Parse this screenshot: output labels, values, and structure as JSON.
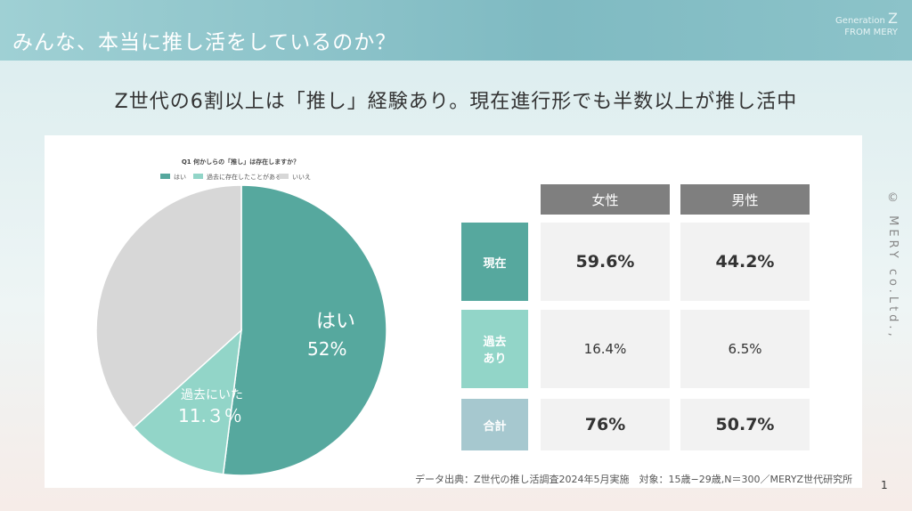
{
  "header": {
    "title": "みんな、本当に推し活をしているのか？",
    "brand_line1": "Generation",
    "brand_z": "Z",
    "brand_line2": "FROM MERY"
  },
  "subtitle": "Z世代の6割以上は「推し」経験あり。現在進行形でも半数以上が推し活中",
  "chart_data": {
    "type": "pie",
    "title": "Q1 何かしらの「推し」は存在しますか？",
    "slices": [
      {
        "label": "はい",
        "value": 52,
        "color": "#56a89e",
        "display_label": "はい",
        "display_value": "52%"
      },
      {
        "label": "過去に存在したことがある",
        "value": 11.3,
        "color": "#92d5c8",
        "display_label": "過去にいた",
        "display_value": "11.３％"
      },
      {
        "label": "いいえ",
        "value": 36.7,
        "color": "#d7d7d7"
      }
    ]
  },
  "table": {
    "columns": [
      "女性",
      "男性"
    ],
    "rows": [
      {
        "label": "現在",
        "color": "#56a89e",
        "values": [
          "59.6%",
          "44.2%"
        ],
        "style": "big"
      },
      {
        "label": "過去\nあり",
        "color": "#92d5c8",
        "values": [
          "16.4%",
          "6.5%"
        ],
        "style": "sm"
      },
      {
        "label": "合計",
        "color": "#a6c8cf",
        "values": [
          "76%",
          "50.7%"
        ],
        "style": "big"
      }
    ]
  },
  "source": "データ出典：Z世代の推し活調査2024年5月実施　対象：15歳−29歳,N＝300／MERYZ世代研究所",
  "copyright": "© MERY co.Ltd.,",
  "page_number": "1"
}
